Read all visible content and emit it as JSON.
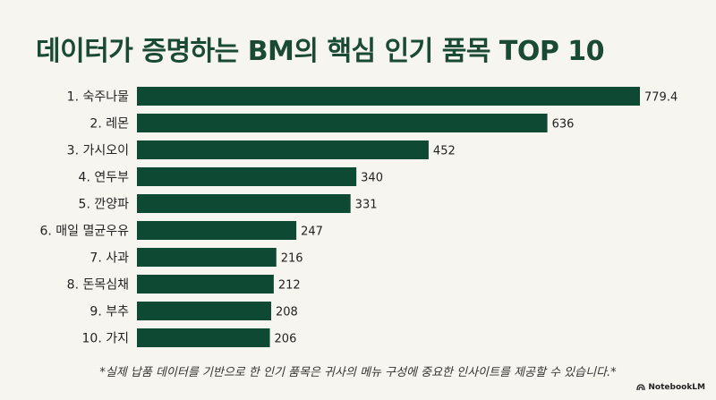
{
  "title": "데이터가 증명하는 BM의 핵심 인기 품목 TOP 10",
  "footnote": "*실제 납품 데이터를 기반으로 한 인기 품목은 귀사의 메뉴 구성에 중요한 인사이트를 제공할 수 있습니다.*",
  "brand": "NotebookLM",
  "colors": {
    "bar": "#0e4a33",
    "background": "#f6f5ef",
    "title": "#1a4a33"
  },
  "chart_data": {
    "type": "bar",
    "orientation": "horizontal",
    "categories": [
      "1. 숙주나물",
      "2. 레몬",
      "3. 가시오이",
      "4. 연두부",
      "5. 깐양파",
      "6. 매일 멸균우유",
      "7. 사과",
      "8. 돈목심채",
      "9. 부추",
      "10. 가지"
    ],
    "values": [
      779.4,
      636,
      452,
      340,
      331,
      247,
      216,
      212,
      208,
      206
    ],
    "value_labels": [
      "779.4",
      "636",
      "452",
      "340",
      "331",
      "247",
      "216",
      "212",
      "208",
      "206"
    ],
    "xlim": [
      0,
      779.4
    ],
    "grid": false,
    "legend": "none"
  }
}
